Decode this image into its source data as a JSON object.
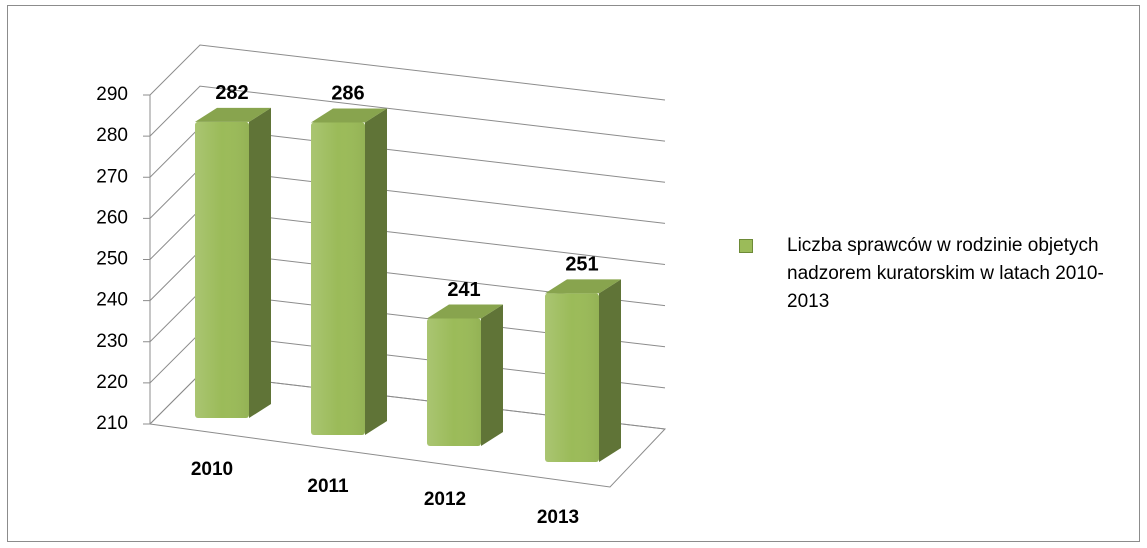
{
  "chart_data": {
    "type": "bar3d",
    "categories": [
      "2010",
      "2011",
      "2012",
      "2013"
    ],
    "series": [
      {
        "name": "Liczba sprawców w rodzinie objetych nadzorem kuratorskim w latach 2010-2013",
        "color": "#9bbb59",
        "values": [
          282,
          286,
          241,
          251
        ]
      }
    ],
    "ylim": [
      210,
      290
    ],
    "yticks": [
      210,
      220,
      230,
      240,
      250,
      260,
      270,
      280,
      290
    ],
    "grid": true,
    "legend": "right",
    "data_labels": true
  }
}
